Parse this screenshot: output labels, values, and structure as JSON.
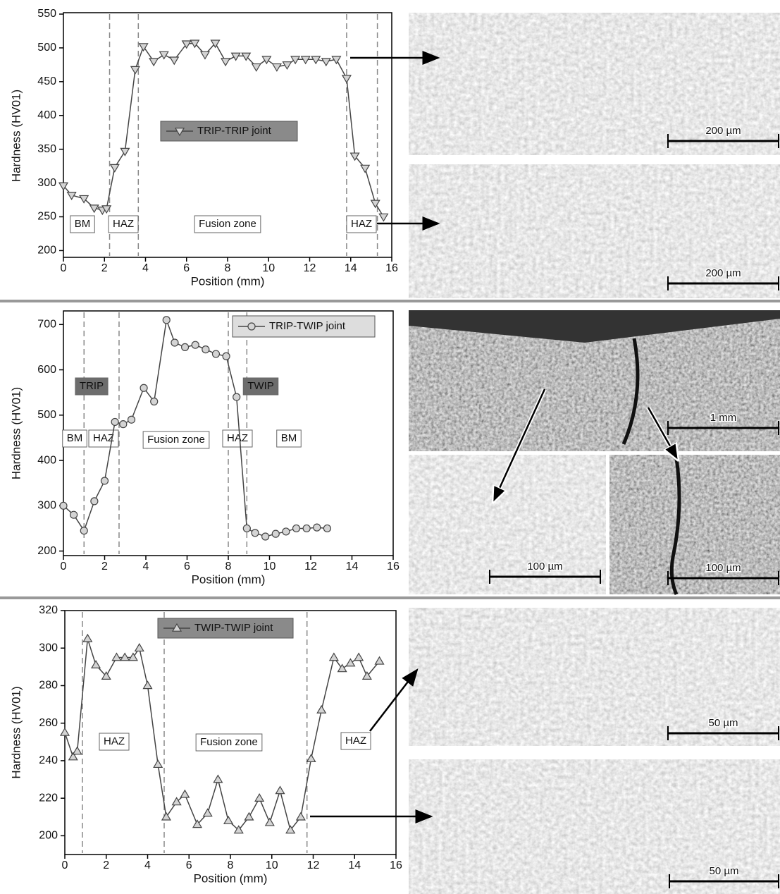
{
  "chart_data": [
    {
      "type": "line",
      "xlabel": "Position (mm)",
      "ylabel": "Hardness (HV01)",
      "marker": "triangle-down",
      "xlim": [
        0,
        16
      ],
      "xticks": [
        0,
        2,
        4,
        6,
        8,
        10,
        12,
        14,
        16
      ],
      "ylim": [
        190,
        550
      ],
      "yticks": [
        200,
        250,
        300,
        350,
        400,
        450,
        500,
        550
      ],
      "series": [
        {
          "name": "TRIP-TRIP joint",
          "color": "#444444",
          "x": [
            0,
            0.4,
            1.0,
            1.5,
            1.9,
            2.1,
            2.5,
            3.0,
            3.5,
            3.9,
            4.4,
            4.9,
            5.4,
            6.0,
            6.4,
            6.9,
            7.4,
            7.9,
            8.4,
            8.9,
            9.4,
            9.9,
            10.4,
            10.9,
            11.3,
            11.8,
            12.3,
            12.8,
            13.3,
            13.8,
            14.2,
            14.7,
            15.2,
            15.6
          ],
          "values": [
            296,
            282,
            277,
            263,
            260,
            262,
            323,
            347,
            468,
            502,
            480,
            490,
            482,
            506,
            507,
            490,
            507,
            480,
            488,
            488,
            472,
            483,
            472,
            475,
            483,
            483,
            483,
            480,
            483,
            455,
            340,
            322,
            270,
            250
          ]
        }
      ],
      "boundaries": [
        2.25,
        3.65,
        13.8,
        15.3
      ],
      "annotations": [
        "BM",
        "HAZ",
        "Fusion zone",
        "HAZ"
      ],
      "micrograph_scales": [
        "200 µm",
        "200 µm"
      ]
    },
    {
      "type": "line",
      "xlabel": "Position (mm)",
      "ylabel": "Hardness (HV01)",
      "marker": "circle",
      "xlim": [
        0,
        16
      ],
      "xticks": [
        0,
        2,
        4,
        6,
        8,
        10,
        12,
        14,
        16
      ],
      "ylim": [
        190,
        730
      ],
      "yticks": [
        200,
        300,
        400,
        500,
        600,
        700
      ],
      "series": [
        {
          "name": "TRIP-TWIP joint",
          "color": "#444444",
          "x": [
            0,
            0.5,
            1.0,
            1.5,
            2.0,
            2.5,
            2.9,
            3.3,
            3.9,
            4.4,
            5.0,
            5.4,
            5.9,
            6.4,
            6.9,
            7.4,
            7.9,
            8.4,
            8.9,
            9.3,
            9.8,
            10.3,
            10.8,
            11.3,
            11.8,
            12.3,
            12.8
          ],
          "values": [
            300,
            280,
            245,
            310,
            355,
            485,
            480,
            490,
            560,
            530,
            710,
            660,
            650,
            655,
            645,
            635,
            630,
            540,
            250,
            240,
            232,
            238,
            243,
            250,
            250,
            252,
            250
          ]
        }
      ],
      "boundaries": [
        1.0,
        2.7,
        8.0,
        8.9
      ],
      "annotations": [
        "TRIP",
        "TWIP",
        "BM",
        "HAZ",
        "Fusion zone",
        "HAZ",
        "BM"
      ],
      "micrograph_scales": [
        "1 mm",
        "100 µm",
        "100 µm"
      ]
    },
    {
      "type": "line",
      "xlabel": "Position (mm)",
      "ylabel": "Hardness (HV01)",
      "marker": "triangle-up",
      "xlim": [
        0,
        16
      ],
      "xticks": [
        0,
        2,
        4,
        6,
        8,
        10,
        12,
        14,
        16
      ],
      "ylim": [
        190,
        320
      ],
      "yticks": [
        200,
        220,
        240,
        260,
        280,
        300,
        320
      ],
      "series": [
        {
          "name": "TWIP-TWIP joint",
          "color": "#444444",
          "x": [
            0,
            0.4,
            0.6,
            1.1,
            1.5,
            2.0,
            2.5,
            2.9,
            3.3,
            3.6,
            4.0,
            4.5,
            4.9,
            5.4,
            5.8,
            6.4,
            6.9,
            7.4,
            7.9,
            8.4,
            8.9,
            9.4,
            9.9,
            10.4,
            10.9,
            11.4,
            11.9,
            12.4,
            13.0,
            13.4,
            13.8,
            14.2,
            14.6,
            15.2
          ],
          "values": [
            255,
            242,
            245,
            305,
            291,
            285,
            295,
            295,
            295,
            300,
            280,
            238,
            210,
            218,
            222,
            206,
            212,
            230,
            208,
            203,
            210,
            220,
            207,
            224,
            203,
            210,
            241,
            267,
            295,
            289,
            292,
            295,
            285,
            293
          ]
        }
      ],
      "boundaries": [
        0.85,
        4.8,
        11.7
      ],
      "annotations": [
        "HAZ",
        "Fusion zone",
        "HAZ"
      ],
      "micrograph_scales": [
        "50 µm",
        "50 µm"
      ]
    }
  ]
}
